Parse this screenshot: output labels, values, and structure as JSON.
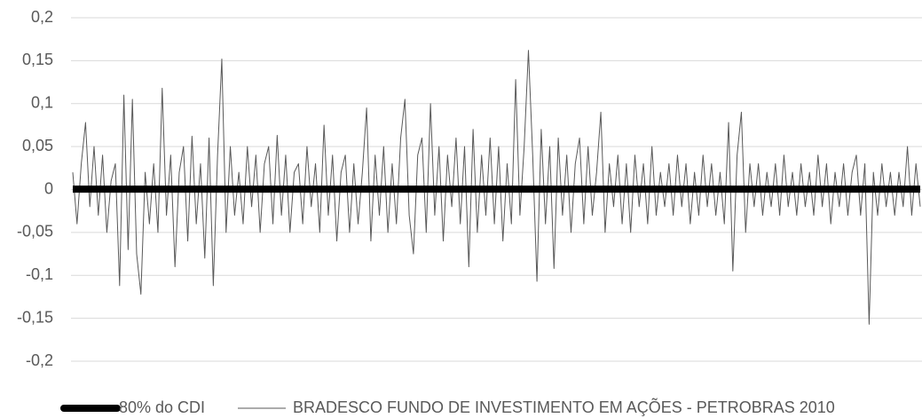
{
  "chart_data": {
    "type": "line",
    "ylim": [
      -0.2,
      0.2
    ],
    "yticks": [
      {
        "value": -0.2,
        "label": "-0,2"
      },
      {
        "value": -0.15,
        "label": "-0,15"
      },
      {
        "value": -0.1,
        "label": "-0,1"
      },
      {
        "value": -0.05,
        "label": "-0,05"
      },
      0,
      {
        "value": 0.05,
        "label": "0,05"
      },
      {
        "value": 0.1,
        "label": "0,1"
      },
      {
        "value": 0.15,
        "label": "0,15"
      },
      {
        "value": 0.2,
        "label": "0,2"
      }
    ],
    "grid": true,
    "legend": "bottom",
    "series": [
      {
        "name": "BRADESCO FUNDO DE INVESTIMENTO EM AÇÕES - PETROBRAS 2010",
        "color": "#595959",
        "values": [
          0.02,
          -0.04,
          0.03,
          0.078,
          -0.02,
          0.05,
          -0.03,
          0.04,
          -0.05,
          0.01,
          0.03,
          -0.112,
          0.11,
          -0.07,
          0.105,
          -0.075,
          -0.122,
          0.02,
          -0.04,
          0.03,
          -0.05,
          0.118,
          -0.03,
          0.04,
          -0.09,
          0.02,
          0.05,
          -0.06,
          0.062,
          -0.04,
          0.03,
          -0.08,
          0.06,
          -0.112,
          0.04,
          0.152,
          -0.05,
          0.05,
          -0.03,
          0.02,
          -0.04,
          0.05,
          -0.02,
          0.04,
          -0.05,
          0.03,
          0.05,
          -0.04,
          0.063,
          -0.03,
          0.04,
          -0.05,
          0.02,
          0.03,
          -0.04,
          0.05,
          -0.02,
          0.03,
          -0.05,
          0.075,
          -0.03,
          0.04,
          -0.06,
          0.02,
          0.04,
          -0.05,
          0.03,
          -0.04,
          0.02,
          0.095,
          -0.06,
          0.04,
          -0.03,
          0.05,
          -0.05,
          0.03,
          -0.04,
          0.06,
          0.105,
          -0.03,
          -0.075,
          0.04,
          0.06,
          -0.05,
          0.1,
          -0.03,
          0.05,
          -0.06,
          0.04,
          -0.02,
          0.06,
          -0.04,
          0.05,
          -0.09,
          0.07,
          -0.05,
          0.04,
          -0.03,
          0.06,
          -0.04,
          0.05,
          -0.06,
          0.03,
          -0.04,
          0.128,
          -0.03,
          0.05,
          0.162,
          0.04,
          -0.107,
          0.07,
          -0.04,
          0.05,
          -0.092,
          0.06,
          -0.03,
          0.04,
          -0.05,
          0.03,
          0.06,
          -0.04,
          0.05,
          -0.03,
          0.02,
          0.09,
          -0.05,
          0.03,
          -0.02,
          0.04,
          -0.04,
          0.03,
          -0.05,
          0.04,
          -0.02,
          0.03,
          -0.04,
          0.05,
          -0.03,
          0.02,
          -0.02,
          0.03,
          -0.03,
          0.04,
          -0.02,
          0.03,
          -0.04,
          0.02,
          -0.03,
          0.04,
          -0.02,
          0.03,
          -0.03,
          0.02,
          -0.04,
          0.078,
          -0.095,
          0.04,
          0.09,
          -0.05,
          0.03,
          -0.02,
          0.03,
          -0.03,
          0.02,
          -0.02,
          0.03,
          -0.03,
          0.04,
          -0.02,
          0.02,
          -0.03,
          0.03,
          -0.02,
          0.02,
          -0.03,
          0.04,
          -0.02,
          0.03,
          -0.04,
          0.02,
          -0.02,
          0.03,
          -0.03,
          0.02,
          0.04,
          -0.03,
          0.03,
          -0.157,
          0.02,
          -0.03,
          0.03,
          -0.02,
          0.02,
          -0.03,
          0.02,
          -0.02,
          0.05,
          -0.03,
          0.03,
          -0.02
        ]
      },
      {
        "name": "80% do CDI",
        "color": "#000000",
        "values": [
          0.0004,
          0.0004,
          0.0004,
          0.0004,
          0.0004,
          0.0004,
          0.0004,
          0.0004,
          0.0004,
          0.0004,
          0.0004,
          0.0004,
          0.0004,
          0.0004,
          0.0004,
          0.0004,
          0.0004,
          0.0004,
          0.0004,
          0.0004,
          0.0004,
          0.0004,
          0.0004,
          0.0004,
          0.0004,
          0.0004,
          0.0004,
          0.0004,
          0.0004,
          0.0004,
          0.0004,
          0.0004,
          0.0004,
          0.0004,
          0.0004,
          0.0004,
          0.0004,
          0.0004,
          0.0004,
          0.0004,
          0.0004,
          0.0004,
          0.0004,
          0.0004,
          0.0004,
          0.0004,
          0.0004,
          0.0004,
          0.0004,
          0.0004,
          0.0004,
          0.0004,
          0.0004,
          0.0004,
          0.0004,
          0.0004,
          0.0004,
          0.0004,
          0.0004,
          0.0004,
          0.0004,
          0.0004,
          0.0004,
          0.0004,
          0.0004,
          0.0004,
          0.0004,
          0.0004,
          0.0004,
          0.0004,
          0.0004,
          0.0004,
          0.0004,
          0.0004,
          0.0004,
          0.0004,
          0.0004,
          0.0004,
          0.0004,
          0.0004,
          0.0004,
          0.0004,
          0.0004,
          0.0004,
          0.0004,
          0.0004,
          0.0004,
          0.0004,
          0.0004,
          0.0004,
          0.0004,
          0.0004,
          0.0004,
          0.0004,
          0.0004,
          0.0004,
          0.0004,
          0.0004,
          0.0004,
          0.0004,
          0.0004,
          0.0004,
          0.0004,
          0.0004,
          0.0004,
          0.0004,
          0.0004,
          0.0004,
          0.0004,
          0.0004,
          0.0004,
          0.0004,
          0.0004,
          0.0004,
          0.0004,
          0.0004,
          0.0004,
          0.0004,
          0.0004,
          0.0004,
          0.0004,
          0.0004,
          0.0004,
          0.0004,
          0.0004,
          0.0004,
          0.0004,
          0.0004,
          0.0004,
          0.0004,
          0.0004,
          0.0004,
          0.0004,
          0.0004,
          0.0004,
          0.0004,
          0.0004,
          0.0004,
          0.0004,
          0.0004,
          0.0004,
          0.0004,
          0.0004,
          0.0004,
          0.0004,
          0.0004,
          0.0004,
          0.0004,
          0.0004,
          0.0004,
          0.0004,
          0.0004,
          0.0004,
          0.0004,
          0.0004,
          0.0004,
          0.0004,
          0.0004,
          0.0004,
          0.0004,
          0.0004,
          0.0004,
          0.0004,
          0.0004,
          0.0004,
          0.0004,
          0.0004,
          0.0004,
          0.0004,
          0.0004,
          0.0004,
          0.0004,
          0.0004,
          0.0004,
          0.0004,
          0.0004,
          0.0004,
          0.0004,
          0.0004,
          0.0004,
          0.0004,
          0.0004,
          0.0004,
          0.0004,
          0.0004,
          0.0004,
          0.0004,
          0.0004,
          0.0004,
          0.0004,
          0.0004,
          0.0004,
          0.0004,
          0.0004,
          0.0004,
          0.0004,
          0.0004,
          0.0004,
          0.0004,
          0.0004,
          0.0004,
          0.0004,
          0.0004,
          0.0004,
          0.0004
        ]
      }
    ]
  }
}
